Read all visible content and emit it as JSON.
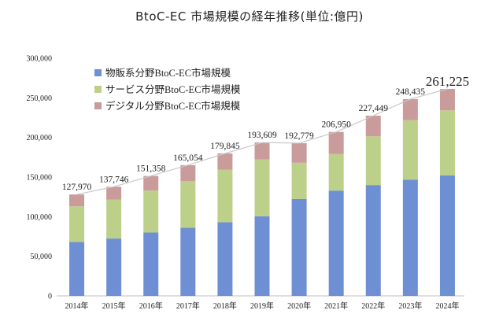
{
  "chart_data": {
    "type": "bar",
    "stacked": true,
    "title": "BtoC-EC 市場規模の経年推移(単位:億円)",
    "categories": [
      "2014年",
      "2015年",
      "2016年",
      "2017年",
      "2018年",
      "2019年",
      "2020年",
      "2021年",
      "2022年",
      "2023年",
      "2024年"
    ],
    "series": [
      {
        "name": "物販系分野BtoC-EC市場規模",
        "color": "#6f8fd4",
        "values": [
          68000,
          72400,
          80000,
          86000,
          92900,
          100500,
          122300,
          132900,
          139900,
          146800,
          152200
        ]
      },
      {
        "name": "サービス分野BtoC-EC市場規模",
        "color": "#bcd08a",
        "values": [
          45000,
          49000,
          53000,
          59000,
          66500,
          71700,
          45800,
          46400,
          61500,
          75000,
          82000
        ]
      },
      {
        "name": "デジタル分野BtoC-EC市場規模",
        "color": "#c99b9a",
        "values": [
          14970,
          16346,
          18358,
          20054,
          20445,
          21409,
          24679,
          27650,
          26049,
          26635,
          27025
        ]
      }
    ],
    "totals": [
      127970,
      137746,
      151358,
      165054,
      179845,
      193609,
      192779,
      206950,
      227449,
      248435,
      261225
    ],
    "total_labels": [
      "127,970",
      "137,746",
      "151,358",
      "165,054",
      "179,845",
      "193,609",
      "192,779",
      "206,950",
      "227,449",
      "248,435",
      "261,225"
    ],
    "y_ticks": [
      "0",
      "50,000",
      "100,000",
      "150,000",
      "200,000",
      "250,000",
      "300,000"
    ],
    "ylim": [
      0,
      300000
    ],
    "legend_position": "top-left",
    "trend_line": true
  }
}
